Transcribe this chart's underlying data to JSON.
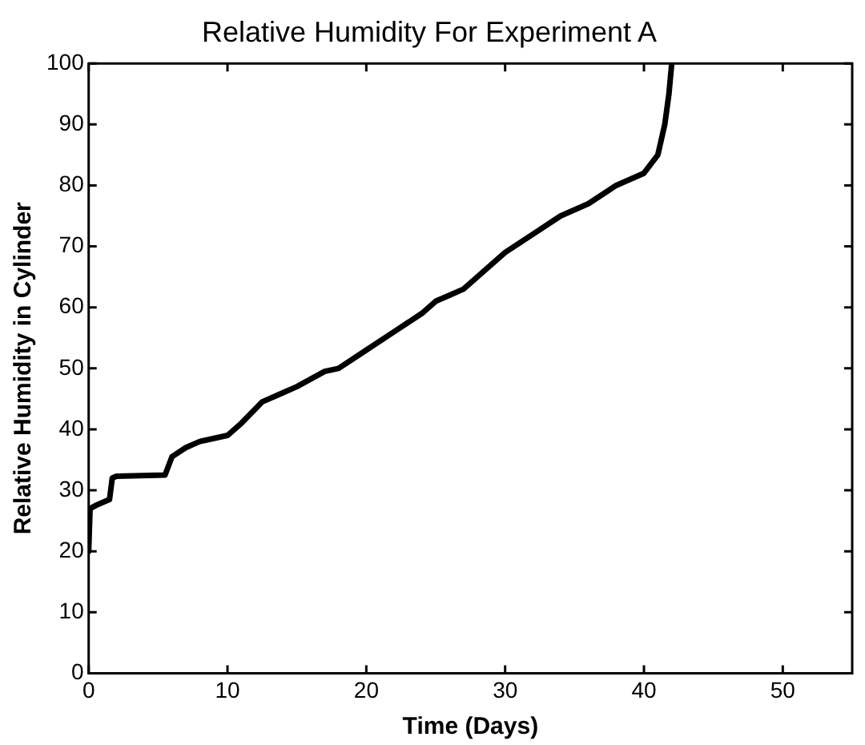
{
  "chart_data": {
    "type": "line",
    "title": "Relative Humidity For Experiment A",
    "xlabel": "Time (Days)",
    "ylabel": "Relative Humidity in Cylinder",
    "x": [
      0,
      0.1,
      0.5,
      1.5,
      1.7,
      2,
      5.5,
      6,
      7,
      8,
      10,
      11,
      12.5,
      14,
      15,
      17,
      18,
      20,
      22,
      24,
      25,
      26,
      27,
      28,
      30,
      32,
      34,
      36,
      38,
      40,
      41,
      41.5,
      41.8,
      42
    ],
    "series": [
      {
        "color": "#000000",
        "values": [
          20,
          27,
          27.5,
          28.5,
          32,
          32.3,
          32.5,
          35.5,
          37,
          38,
          39,
          41,
          44.5,
          46,
          47,
          49.5,
          50,
          53,
          56,
          59,
          61,
          62,
          63,
          65,
          69,
          72,
          75,
          77,
          80,
          82,
          85,
          90,
          95,
          100
        ]
      }
    ],
    "xlim": [
      0,
      55
    ],
    "xticks": [
      0,
      10,
      20,
      30,
      40,
      50
    ],
    "ylim": [
      0,
      100
    ],
    "yticks": [
      0,
      10,
      20,
      30,
      40,
      50,
      60,
      70,
      80,
      90,
      100
    ],
    "grid": false,
    "legend": false,
    "marker": "none",
    "line_style": "solid"
  }
}
